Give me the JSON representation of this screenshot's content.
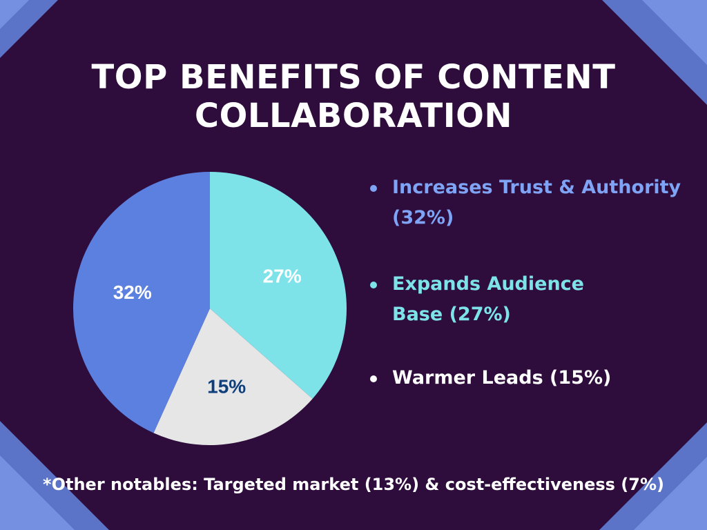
{
  "title_lines": [
    "TOP BENEFITS OF CONTENT",
    "COLLABORATION"
  ],
  "colors": {
    "background": "#2e0c3b",
    "trust": "#5b80e0",
    "audience": "#7de3e9",
    "leads": "#e6e6e6",
    "leads_label": "#0f3e7a",
    "slice_label": "#ffffff",
    "corner_a": "#5b74c8",
    "corner_b": "#7590e0"
  },
  "legend": [
    {
      "lines": [
        "Increases Trust & Authority",
        "(32%)"
      ],
      "color": "#7fa4f5"
    },
    {
      "lines": [
        "Expands Audience",
        "Base (27%)"
      ],
      "color": "#7de3e9"
    },
    {
      "lines": [
        "Warmer Leads (15%)"
      ],
      "color": "#ffffff"
    }
  ],
  "footnote": "*Other notables: Targeted market (13%) & cost-effectiveness (7%)",
  "chart_data": {
    "type": "pie",
    "title": "TOP BENEFITS OF CONTENT COLLABORATION",
    "start_angle_deg": 0,
    "direction": "clockwise",
    "slices": [
      {
        "name": "Expands Audience Base",
        "value": 27,
        "label": "27%",
        "color": "#7de3e9",
        "label_color": "#ffffff"
      },
      {
        "name": "Warmer Leads",
        "value": 15,
        "label": "15%",
        "color": "#e6e6e6",
        "label_color": "#0f3e7a"
      },
      {
        "name": "Increases Trust & Authority",
        "value": 32,
        "label": "32%",
        "color": "#5b80e0",
        "label_color": "#ffffff"
      }
    ]
  }
}
